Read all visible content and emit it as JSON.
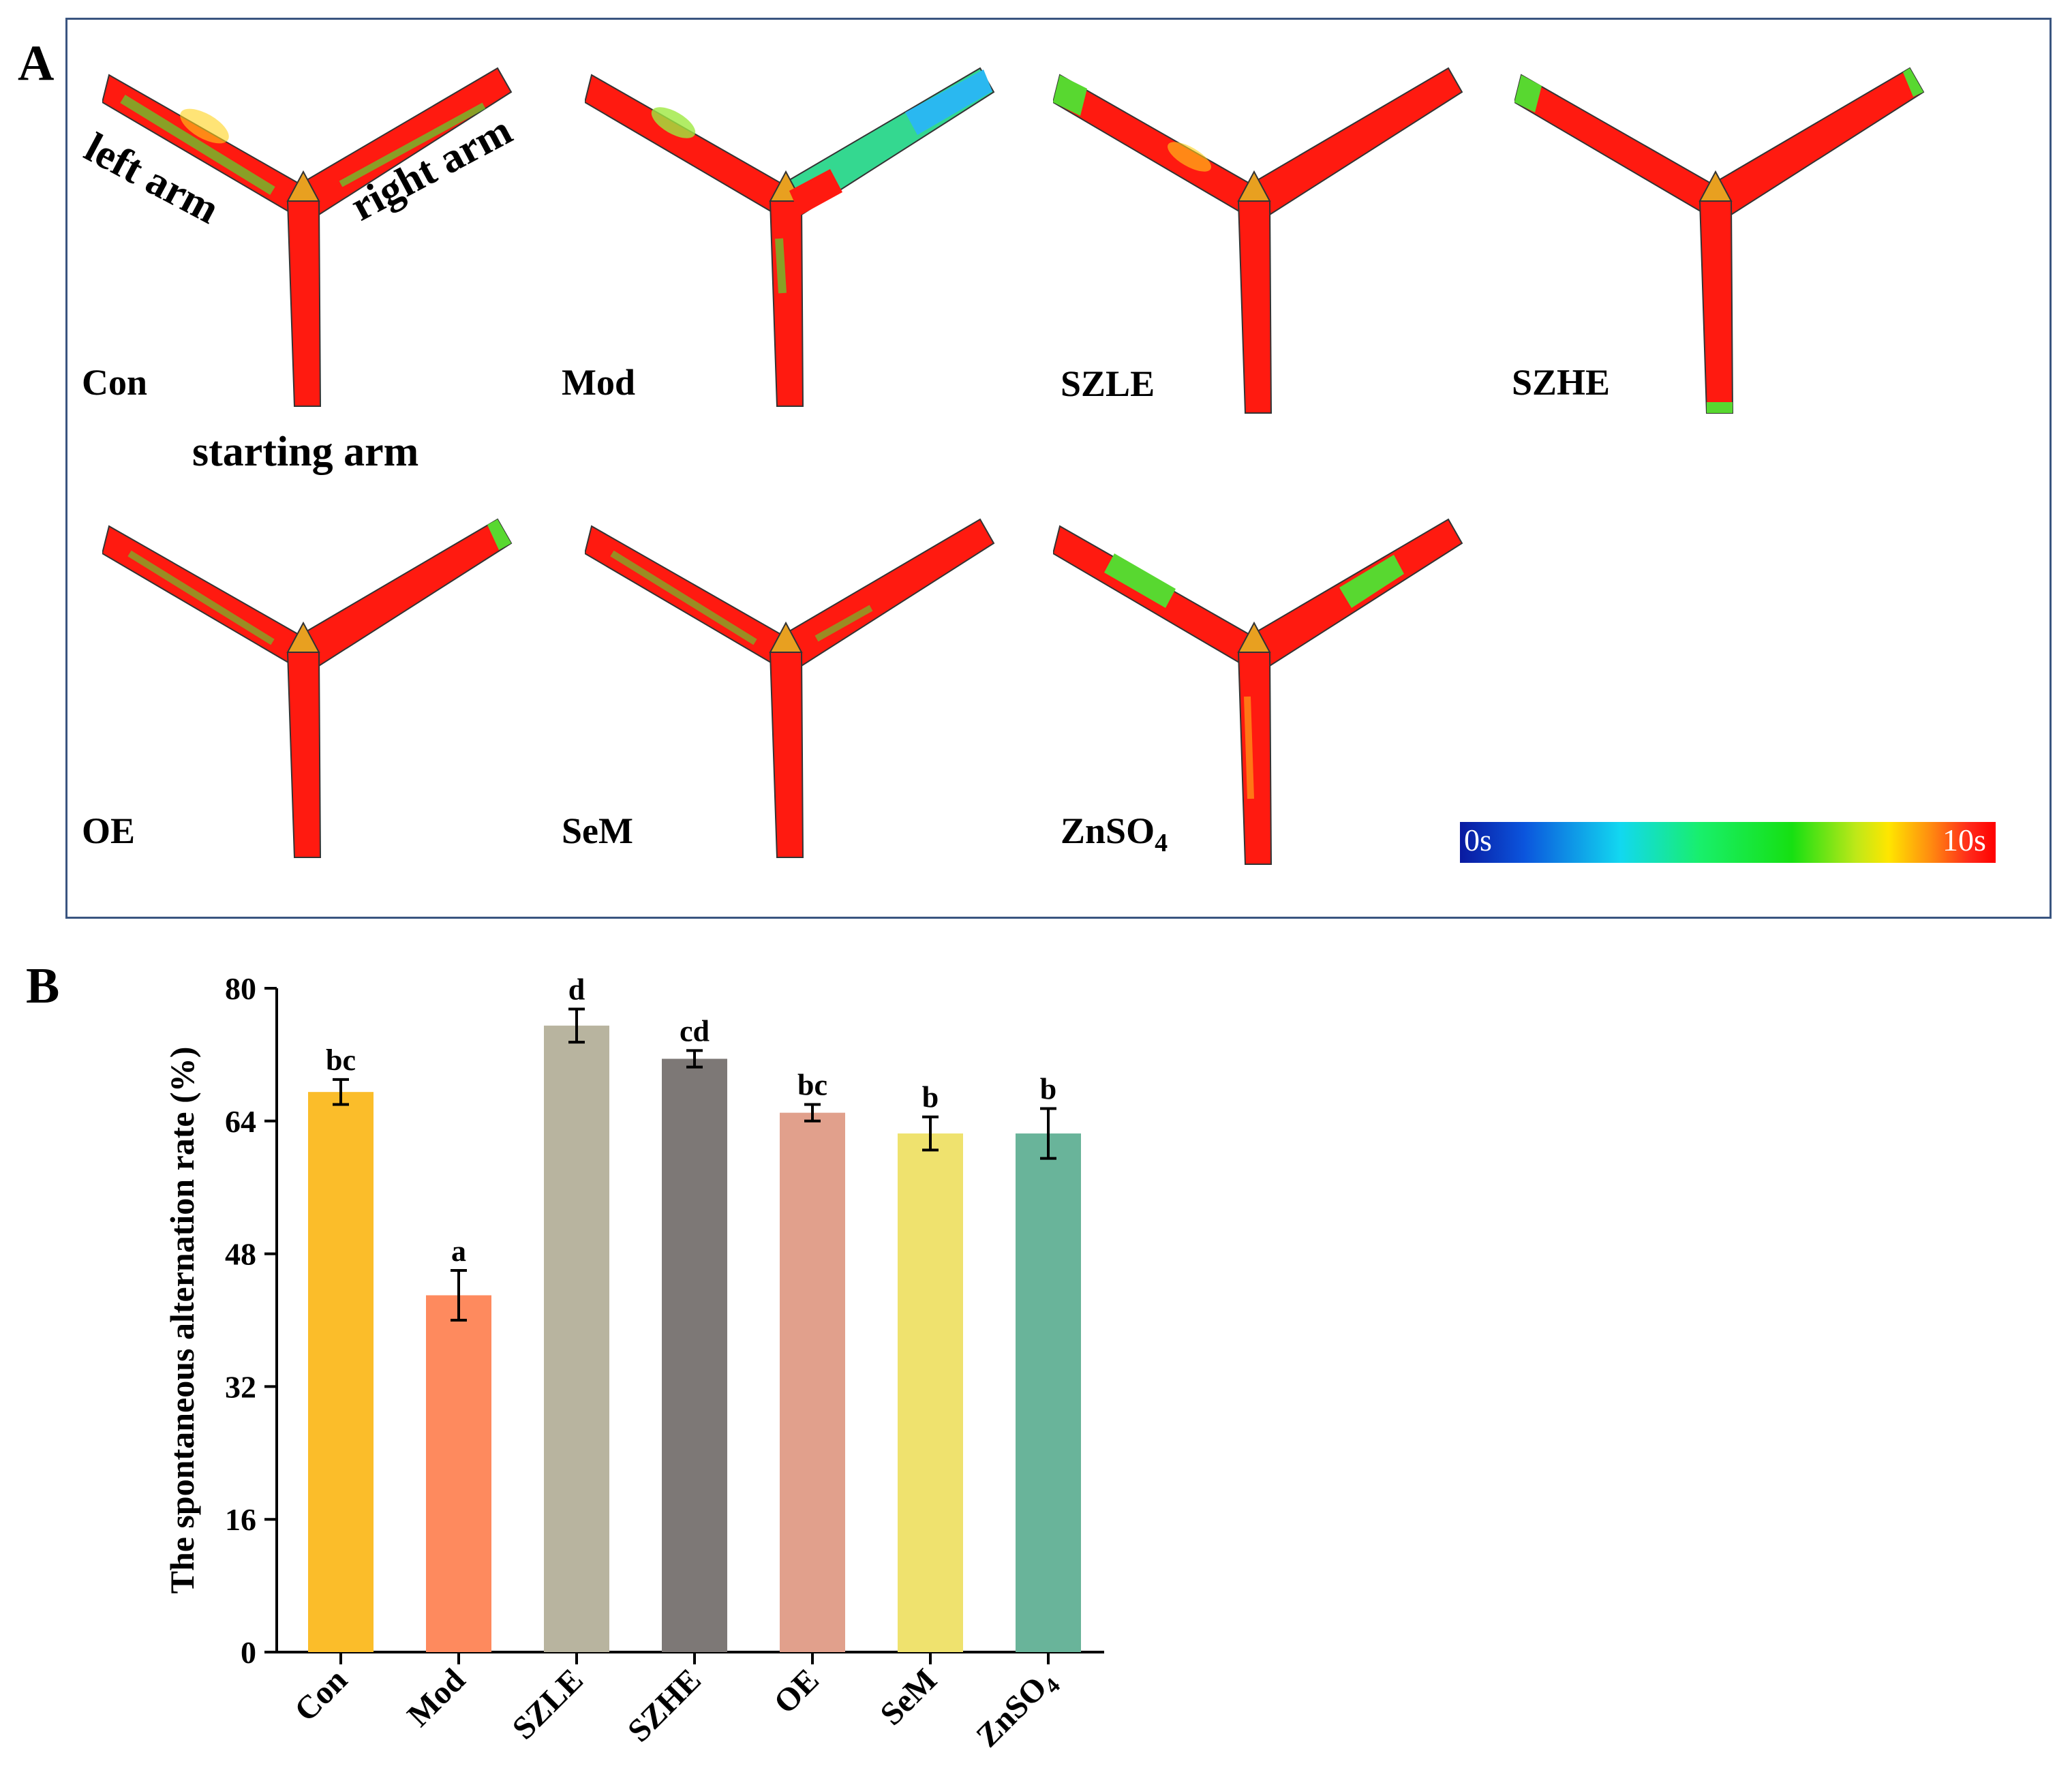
{
  "panel_a": {
    "letter": "A",
    "arm_labels": {
      "left": "left arm",
      "right": "right arm",
      "start": "starting arm"
    },
    "groups": [
      "Con",
      "Mod",
      "SZLE",
      "SZHE",
      "OE",
      "SeM",
      "ZnSO4"
    ],
    "colorbar": {
      "min_label": "0s",
      "max_label": "10s"
    }
  },
  "panel_b": {
    "letter": "B"
  },
  "chart_data": {
    "type": "bar",
    "title": "",
    "xlabel": "",
    "ylabel": "The spontaneous alternation rate (%)",
    "categories": [
      "Con",
      "Mod",
      "SZLE",
      "SZHE",
      "OE",
      "SeM",
      "ZnSO4"
    ],
    "category_display": [
      {
        "base": "Con",
        "sub": ""
      },
      {
        "base": "Mod",
        "sub": ""
      },
      {
        "base": "SZLE",
        "sub": ""
      },
      {
        "base": "SZHE",
        "sub": ""
      },
      {
        "base": "OE",
        "sub": ""
      },
      {
        "base": "SeM",
        "sub": ""
      },
      {
        "base": "ZnSO",
        "sub": "4"
      }
    ],
    "values": [
      67.5,
      43.0,
      75.5,
      71.5,
      65.0,
      62.5,
      62.5
    ],
    "errors": [
      1.5,
      3.0,
      2.0,
      1.0,
      1.0,
      2.0,
      3.0
    ],
    "significance": [
      "bc",
      "a",
      "d",
      "cd",
      "bc",
      "b",
      "b"
    ],
    "colors": [
      "#fbbd2a",
      "#fe8a5e",
      "#b8b49f",
      "#7d7876",
      "#e1a08c",
      "#efe26e",
      "#69b49a"
    ],
    "ylim": [
      0,
      80
    ],
    "yticks": [
      0,
      16,
      32,
      48,
      64,
      80
    ]
  }
}
